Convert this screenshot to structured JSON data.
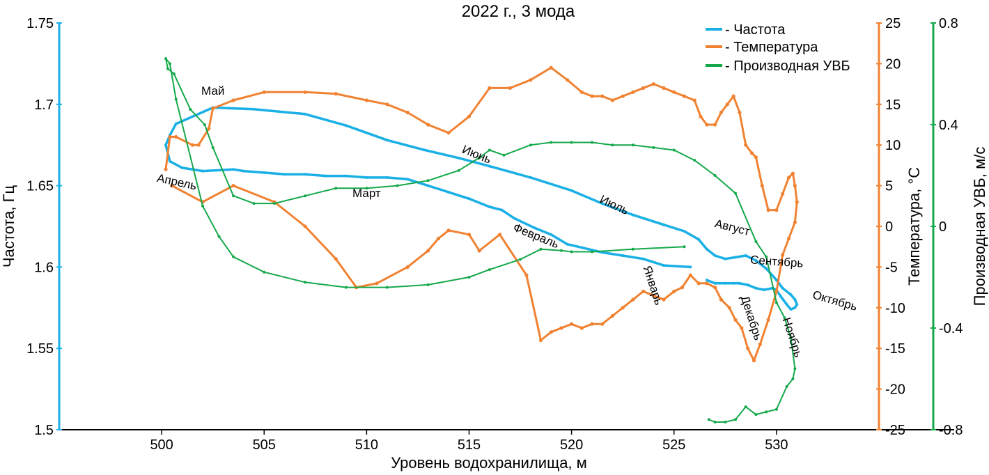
{
  "chart_data": {
    "type": "line",
    "title": "2022 г., 3 мода",
    "xlabel": "Уровень водохранилища, м",
    "xlim": [
      495,
      535
    ],
    "x_ticks": [
      500,
      505,
      510,
      515,
      520,
      525,
      530
    ],
    "y_left": {
      "label": "Частота, Гц",
      "lim": [
        1.5,
        1.75
      ],
      "ticks": [
        1.5,
        1.55,
        1.6,
        1.65,
        1.7,
        1.75
      ],
      "tick_labels": [
        "1.5",
        "1.55",
        "1.6",
        "1.65",
        "1.7",
        "1.75"
      ],
      "color": "#1ab0e6"
    },
    "y_right1": {
      "label": "Температура, °C",
      "lim": [
        -25,
        25
      ],
      "ticks": [
        -25,
        -20,
        -15,
        -10,
        -5,
        0,
        5,
        10,
        15,
        20,
        25
      ],
      "tick_labels": [
        "-25",
        "-20",
        "-15",
        "-10",
        "-5",
        "0",
        "5",
        "10",
        "15",
        "20",
        "25"
      ],
      "color": "#f08232"
    },
    "y_right2": {
      "label": "Производная УВБ, м/с",
      "lim": [
        -0.8,
        0.8
      ],
      "ticks": [
        -0.8,
        -0.4,
        0,
        0.4,
        0.8
      ],
      "tick_labels": [
        "-0.8",
        "-0.4",
        "0",
        "0.4",
        "0.8"
      ],
      "color": "#14a84a"
    },
    "legend": {
      "position": "top-right",
      "entries": [
        "- Частота",
        "- Температура",
        "- Производная УВБ"
      ]
    },
    "series": [
      {
        "name": "- Частота",
        "axis": "left",
        "color": "#1ab0e6",
        "x": [
          525.8,
          524.5,
          523.5,
          522.5,
          521.5,
          520.5,
          519.8,
          519.0,
          518.2,
          517.2,
          516.6,
          516.0,
          515.0,
          514.0,
          513.0,
          512.0,
          511.0,
          510.0,
          509.0,
          508.0,
          507.0,
          506.0,
          505.0,
          504.0,
          503.5,
          502.0,
          501.0,
          500.4,
          500.2,
          500.4,
          500.7,
          502.5,
          504.5,
          507.0,
          509.0,
          511.0,
          512.8,
          514.5,
          516.0,
          518.0,
          520.0,
          521.5,
          523.0,
          524.5,
          525.5,
          526.2,
          526.6,
          527.0,
          527.5,
          528.0,
          528.5,
          529.0,
          529.5,
          530.0,
          530.3,
          530.7,
          530.9,
          531.0,
          530.9,
          530.7,
          530.5,
          530.2,
          530.0,
          529.8,
          529.4,
          529.0,
          528.6,
          528.2,
          527.9,
          527.5,
          527.0,
          526.6
        ],
        "y": [
          1.6,
          1.601,
          1.605,
          1.607,
          1.609,
          1.612,
          1.614,
          1.62,
          1.624,
          1.63,
          1.635,
          1.637,
          1.642,
          1.646,
          1.65,
          1.654,
          1.655,
          1.655,
          1.656,
          1.656,
          1.657,
          1.657,
          1.658,
          1.659,
          1.66,
          1.659,
          1.661,
          1.665,
          1.675,
          1.681,
          1.688,
          1.698,
          1.697,
          1.694,
          1.687,
          1.678,
          1.672,
          1.667,
          1.662,
          1.655,
          1.647,
          1.639,
          1.632,
          1.626,
          1.622,
          1.617,
          1.611,
          1.607,
          1.605,
          1.606,
          1.607,
          1.604,
          1.599,
          1.592,
          1.587,
          1.583,
          1.58,
          1.577,
          1.575,
          1.574,
          1.577,
          1.582,
          1.586,
          1.587,
          1.586,
          1.587,
          1.589,
          1.59,
          1.59,
          1.59,
          1.59,
          1.592
        ]
      },
      {
        "name": "- Температура",
        "axis": "right1",
        "color": "#f08232",
        "x": [
          500.2,
          500.4,
          500.7,
          501.5,
          501.8,
          502.3,
          502.5,
          503.5,
          505.0,
          507.0,
          508.5,
          510.0,
          511.0,
          512.0,
          513.0,
          514.0,
          515.0,
          516.0,
          517.0,
          518.0,
          519.0,
          519.8,
          520.5,
          521.0,
          521.5,
          522.0,
          522.5,
          523.0,
          523.5,
          524.0,
          524.5,
          525.0,
          525.5,
          526.0,
          526.3,
          526.6,
          527.0,
          527.3,
          527.6,
          527.9,
          528.2,
          528.5,
          528.8,
          529.0,
          529.3,
          529.6,
          530.0,
          530.3,
          530.6,
          530.8,
          530.9,
          531.0,
          530.9,
          530.6,
          530.3,
          530.0,
          529.6,
          529.2,
          528.9,
          528.6,
          528.3,
          528.0,
          527.7,
          527.3,
          527.0,
          526.6,
          526.2,
          525.8,
          525.4,
          525.0,
          524.5,
          524.0,
          523.5,
          523.0,
          522.5,
          522.0,
          521.5,
          521.0,
          520.5,
          520.0,
          519.5,
          519.0,
          518.5,
          517.8,
          516.5,
          515.5,
          515.0,
          514.0,
          513.5,
          513.0,
          512.0,
          510.5,
          509.5,
          508.5,
          507.0,
          505.5,
          503.5,
          502.0,
          500.5
        ],
        "y": [
          7,
          11,
          11,
          10,
          10,
          12,
          14.5,
          15.5,
          16.5,
          16.5,
          16.3,
          15.5,
          15,
          14,
          12.5,
          11.5,
          13.5,
          17,
          17,
          18,
          19.5,
          18,
          16.5,
          16,
          16,
          15.5,
          16,
          16.5,
          17,
          17.5,
          17,
          16.5,
          16,
          15.5,
          13.5,
          12.5,
          12.5,
          14,
          15,
          16,
          14,
          10,
          9,
          8.5,
          5,
          2,
          2,
          4,
          6,
          6.5,
          5,
          3,
          0.5,
          -1.5,
          -3.5,
          -8,
          -11.5,
          -14.5,
          -16.5,
          -15,
          -12.5,
          -11.5,
          -10,
          -9,
          -7.5,
          -7,
          -7,
          -6,
          -7.5,
          -8,
          -9,
          -8.5,
          -8,
          -9,
          -10,
          -11,
          -12,
          -12,
          -12.5,
          -12,
          -12.5,
          -13,
          -14,
          -6,
          -1,
          -3,
          -1,
          -0.5,
          -1.5,
          -3,
          -5,
          -7,
          -7.5,
          -4,
          0,
          3,
          5,
          3,
          5
        ]
      },
      {
        "name": "- Производная УВБ",
        "axis": "right2",
        "color": "#14a84a",
        "x": [
          525.5,
          523.0,
          521.0,
          520.0,
          519.5,
          518.5,
          517.5,
          516.0,
          515.0,
          513.0,
          511.0,
          509.0,
          507.0,
          505.0,
          503.5,
          502.8,
          502.0,
          500.7,
          500.4,
          500.2,
          500.3,
          500.6,
          501.4,
          502.1,
          502.5,
          503.5,
          504.5,
          505.5,
          507.0,
          508.5,
          510.0,
          511.5,
          513.0,
          514.5,
          515.5,
          516.0,
          516.7,
          518.0,
          519.0,
          520.0,
          521.0,
          522.0,
          523.0,
          524.0,
          525.0,
          526.0,
          527.0,
          528.0,
          529.0,
          529.5,
          530.0,
          530.4,
          530.7,
          530.9,
          530.8,
          530.5,
          530.0,
          529.5,
          529.0,
          528.5,
          528.0,
          527.5,
          527.0,
          526.7
        ],
        "y": [
          -0.08,
          -0.09,
          -0.1,
          -0.1,
          -0.095,
          -0.09,
          -0.13,
          -0.17,
          -0.2,
          -0.23,
          -0.24,
          -0.24,
          -0.22,
          -0.18,
          -0.12,
          -0.04,
          0.08,
          0.5,
          0.64,
          0.66,
          0.62,
          0.6,
          0.46,
          0.4,
          0.31,
          0.12,
          0.09,
          0.09,
          0.12,
          0.15,
          0.15,
          0.16,
          0.18,
          0.22,
          0.27,
          0.3,
          0.28,
          0.32,
          0.33,
          0.33,
          0.33,
          0.32,
          0.32,
          0.31,
          0.3,
          0.26,
          0.2,
          0.13,
          -0.06,
          -0.12,
          -0.3,
          -0.36,
          -0.44,
          -0.56,
          -0.6,
          -0.63,
          -0.72,
          -0.73,
          -0.74,
          -0.71,
          -0.76,
          -0.77,
          -0.77,
          -0.76
        ]
      }
    ],
    "annotations": [
      {
        "text": "Май",
        "x": 502.5,
        "y": 1.706
      },
      {
        "text": "Апрель",
        "x": 500.7,
        "y": 1.65,
        "angle": 12
      },
      {
        "text": "Март",
        "x": 510.0,
        "y": 1.643
      },
      {
        "text": "Июнь",
        "x": 515.3,
        "y": 1.667,
        "angle": 22
      },
      {
        "text": "Июль",
        "x": 522.0,
        "y": 1.636,
        "angle": 25
      },
      {
        "text": "Февраль",
        "x": 518.2,
        "y": 1.617,
        "angle": 22
      },
      {
        "text": "Август",
        "x": 527.8,
        "y": 1.622,
        "angle": 14
      },
      {
        "text": "Сентябрь",
        "x": 530.0,
        "y": 1.601,
        "angle": 4
      },
      {
        "text": "Октябрь",
        "x": 532.8,
        "y": 1.577,
        "angle": 16
      },
      {
        "text": "Январь",
        "x": 523.8,
        "y": 1.588,
        "angle": 72
      },
      {
        "text": "Декабрь",
        "x": 528.6,
        "y": 1.568,
        "angle": 72
      },
      {
        "text": "Ноябрь",
        "x": 530.6,
        "y": 1.556,
        "angle": 72
      }
    ]
  }
}
